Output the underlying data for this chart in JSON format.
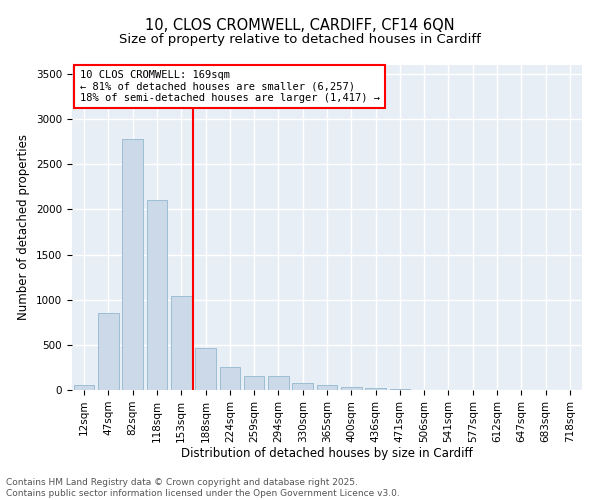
{
  "title_line1": "10, CLOS CROMWELL, CARDIFF, CF14 6QN",
  "title_line2": "Size of property relative to detached houses in Cardiff",
  "xlabel": "Distribution of detached houses by size in Cardiff",
  "ylabel": "Number of detached properties",
  "bar_color": "#ccd9e8",
  "bar_edge_color": "#9dbdd4",
  "background_color": "#e8eef5",
  "grid_color": "#ffffff",
  "categories": [
    "12sqm",
    "47sqm",
    "82sqm",
    "118sqm",
    "153sqm",
    "188sqm",
    "224sqm",
    "259sqm",
    "294sqm",
    "330sqm",
    "365sqm",
    "400sqm",
    "436sqm",
    "471sqm",
    "506sqm",
    "541sqm",
    "577sqm",
    "612sqm",
    "647sqm",
    "683sqm",
    "718sqm"
  ],
  "values": [
    60,
    850,
    2780,
    2100,
    1040,
    460,
    250,
    150,
    155,
    75,
    60,
    35,
    20,
    10,
    5,
    3,
    2,
    1,
    1,
    0,
    0
  ],
  "vline_x": 4.5,
  "annotation_text": "10 CLOS CROMWELL: 169sqm\n← 81% of detached houses are smaller (6,257)\n18% of semi-detached houses are larger (1,417) →",
  "ylim": [
    0,
    3600
  ],
  "yticks": [
    0,
    500,
    1000,
    1500,
    2000,
    2500,
    3000,
    3500
  ],
  "footer_line1": "Contains HM Land Registry data © Crown copyright and database right 2025.",
  "footer_line2": "Contains public sector information licensed under the Open Government Licence v3.0.",
  "title_fontsize": 10.5,
  "subtitle_fontsize": 9.5,
  "axis_label_fontsize": 8.5,
  "tick_fontsize": 7.5,
  "annotation_fontsize": 7.5,
  "footer_fontsize": 6.5
}
